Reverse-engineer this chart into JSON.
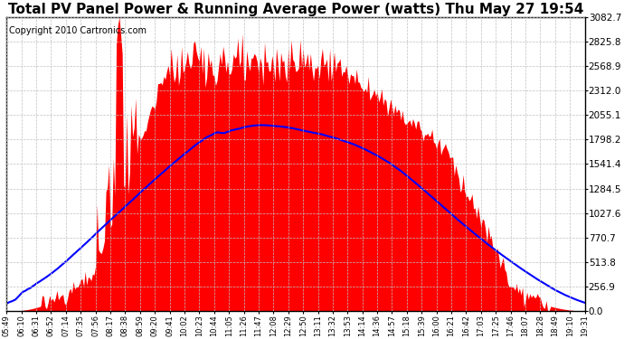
{
  "title": "Total PV Panel Power & Running Average Power (watts) Thu May 27 19:54",
  "copyright": "Copyright 2010 Cartronics.com",
  "y_max": 3082.7,
  "y_min": 0.0,
  "y_ticks": [
    0.0,
    256.9,
    513.8,
    770.7,
    1027.6,
    1284.5,
    1541.4,
    1798.2,
    2055.1,
    2312.0,
    2568.9,
    2825.8,
    3082.7
  ],
  "x_labels": [
    "05:49",
    "06:10",
    "06:31",
    "06:52",
    "07:14",
    "07:35",
    "07:56",
    "08:17",
    "08:38",
    "08:59",
    "09:20",
    "09:41",
    "10:02",
    "10:23",
    "10:44",
    "11:05",
    "11:26",
    "11:47",
    "12:08",
    "12:29",
    "12:50",
    "13:11",
    "13:32",
    "13:53",
    "14:14",
    "14:36",
    "14:57",
    "15:18",
    "15:39",
    "16:00",
    "16:21",
    "16:42",
    "17:03",
    "17:25",
    "17:46",
    "18:07",
    "18:28",
    "18:49",
    "19:10",
    "19:31"
  ],
  "background_color": "#ffffff",
  "fill_color": "#ff0000",
  "line_color": "#0000ff",
  "grid_color": "#c0c0c0",
  "title_fontsize": 11,
  "copyright_fontsize": 7
}
